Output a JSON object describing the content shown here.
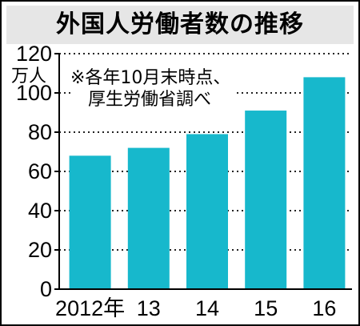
{
  "colors": {
    "bar": "#17b8cc",
    "title_bg": "#e6e6e6",
    "grid": "#222222"
  },
  "chart_data": {
    "type": "bar",
    "title": "外国人労働者数の推移",
    "unit_label": "万人",
    "note": [
      "※各年10月末時点、",
      "厚生労働省調べ"
    ],
    "categories": [
      "2012年",
      "13",
      "14",
      "15",
      "16"
    ],
    "values": [
      68,
      72,
      79,
      91,
      108
    ],
    "ylim": [
      0,
      120
    ],
    "yticks": [
      "0",
      "20",
      "40",
      "60",
      "80",
      "100",
      "120"
    ],
    "grid": "dotted horizontal",
    "legend": "none"
  }
}
